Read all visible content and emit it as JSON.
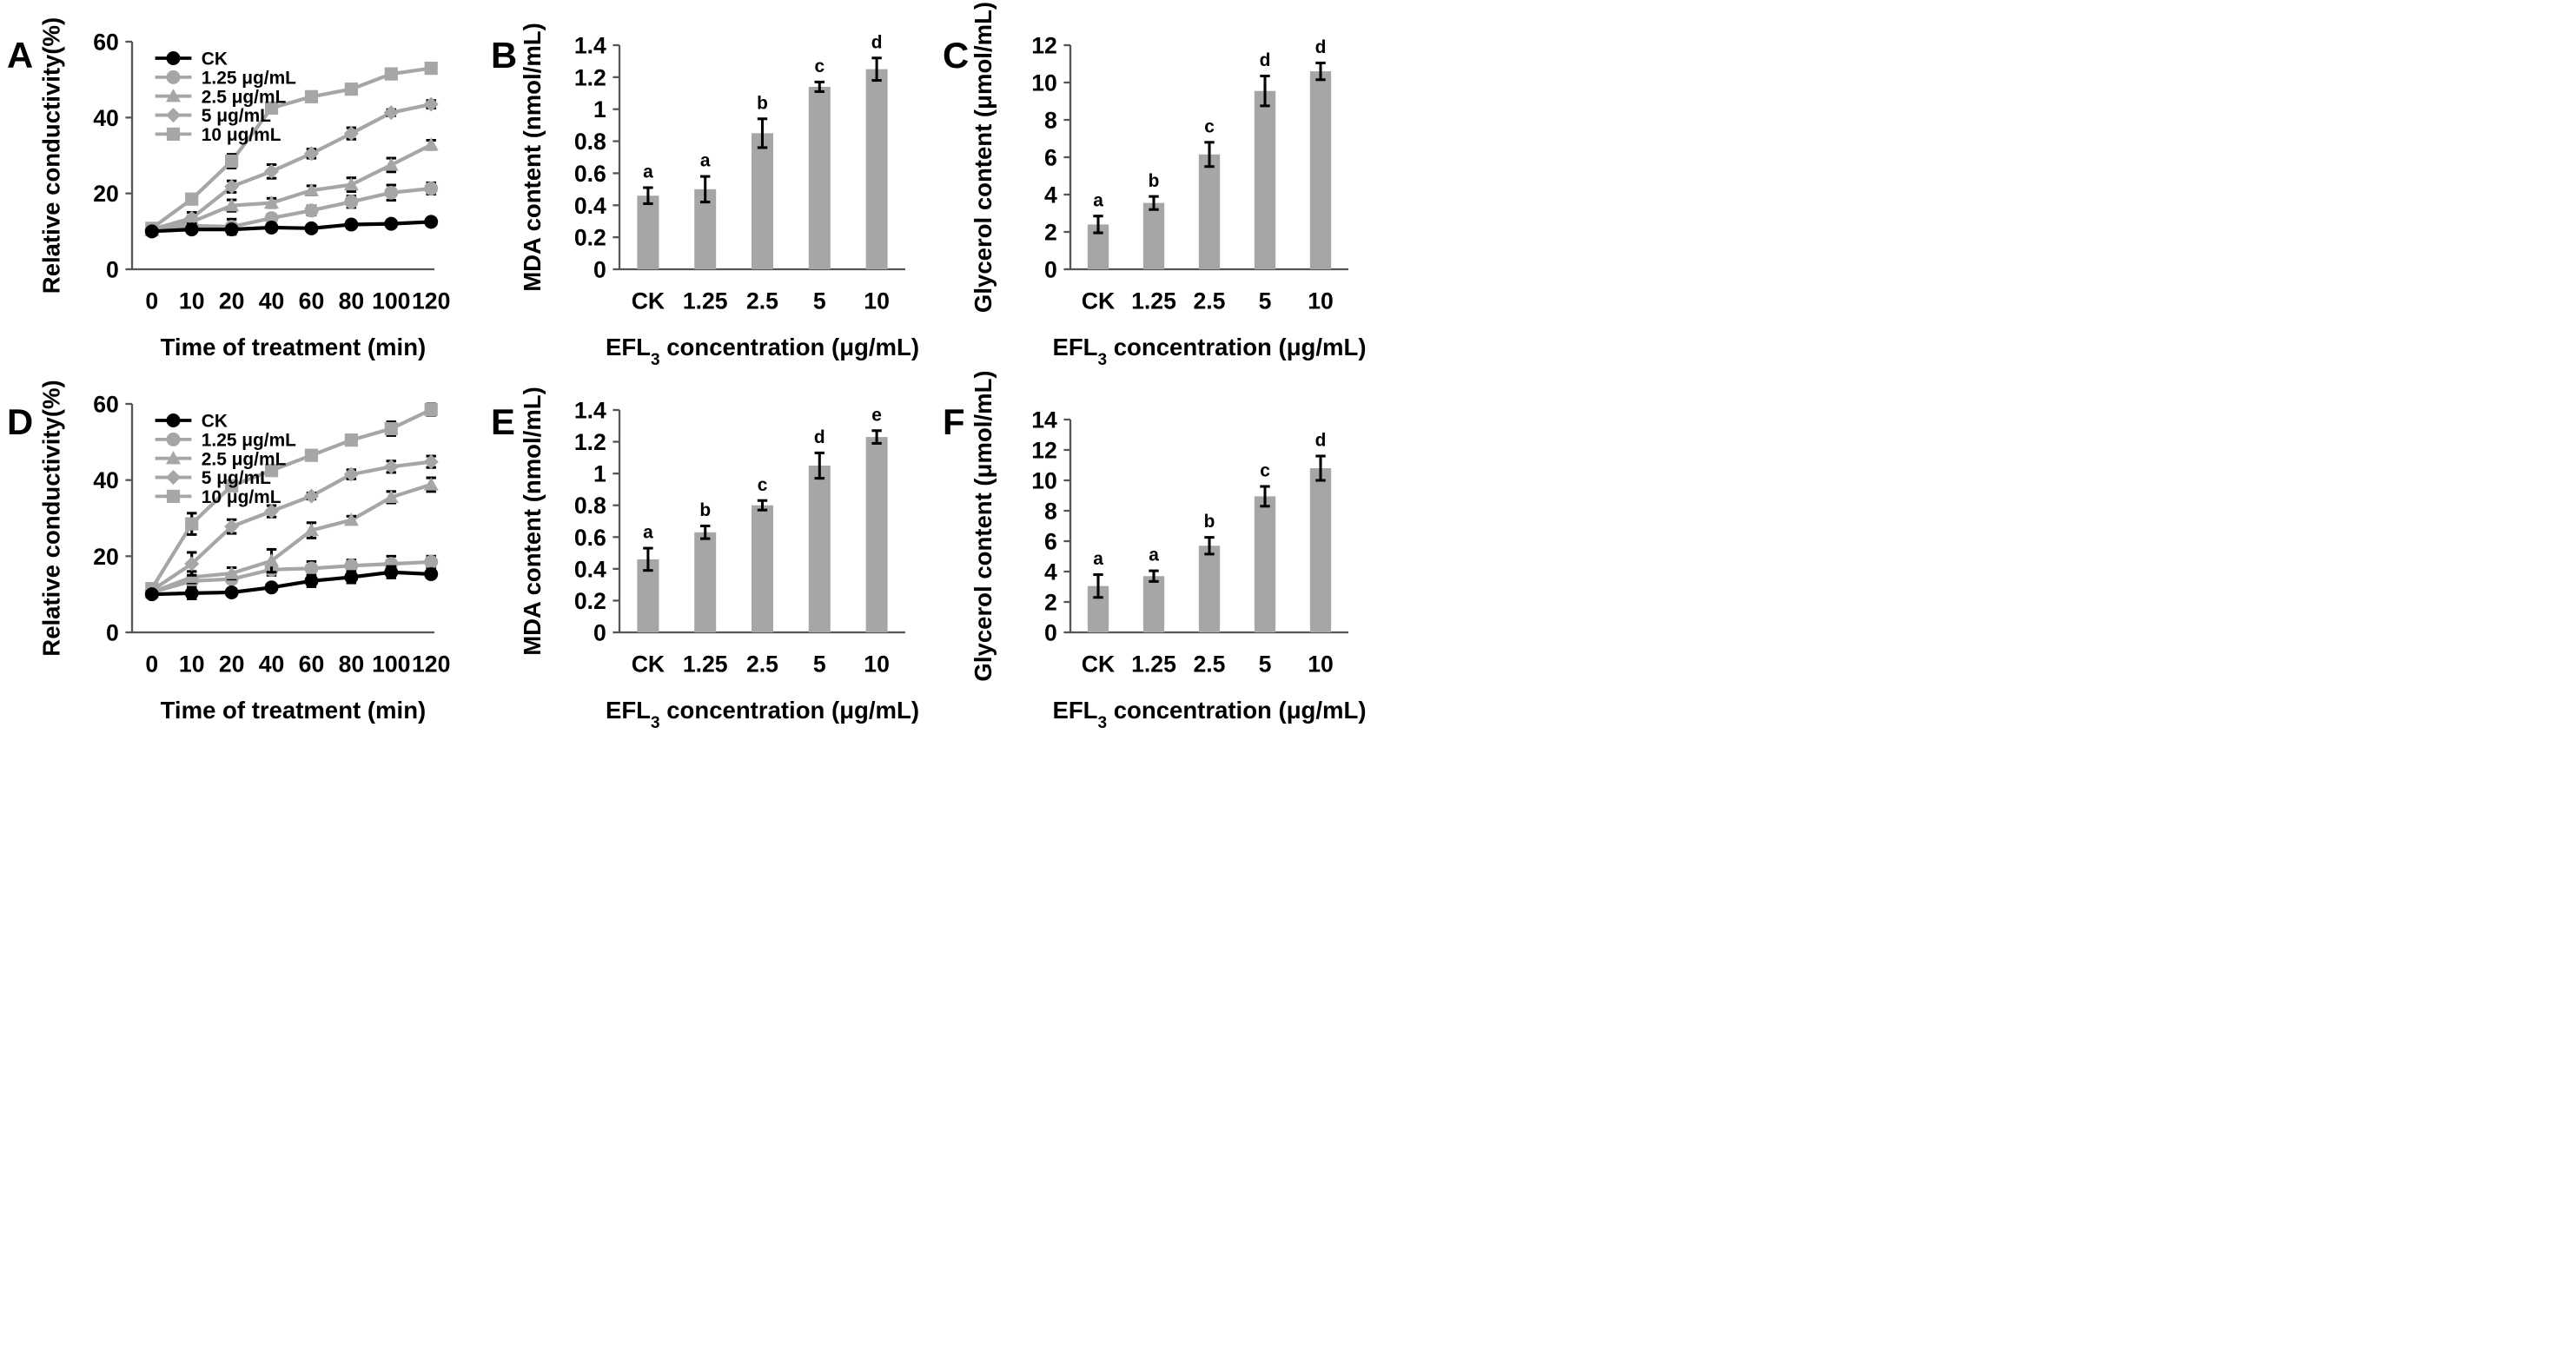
{
  "colors": {
    "ck": "#000000",
    "treated": "#a6a6a6",
    "bar": "#a6a6a6",
    "axis": "#555555"
  },
  "chart_data": [
    {
      "id": "A",
      "type": "line",
      "panel_letter": "A",
      "xlabel": "Time of treatment (min)",
      "ylabel": "Relative conductivity(%)",
      "x": [
        "0",
        "10",
        "20",
        "40",
        "60",
        "80",
        "100",
        "120"
      ],
      "ylim": [
        0,
        60
      ],
      "yticks": [
        "0",
        "20",
        "40",
        "60"
      ],
      "legend_position": "top-left",
      "series": [
        {
          "name": "CK",
          "marker": "circle",
          "values": [
            10,
            10.5,
            10.5,
            11,
            10.8,
            11.8,
            12,
            12.5
          ],
          "errors": [
            0.8,
            0.8,
            1,
            1,
            0.8,
            1,
            0.6,
            0.6
          ]
        },
        {
          "name": "1.25 μg/mL",
          "marker": "circle",
          "values": [
            10,
            11.5,
            11.2,
            13.5,
            15.5,
            17.8,
            20.2,
            21.3
          ],
          "errors": [
            0.8,
            1.5,
            2,
            1,
            1.2,
            1.5,
            2,
            1.5
          ]
        },
        {
          "name": "2.5 μg/mL",
          "marker": "triangle",
          "values": [
            10.2,
            12.5,
            16.8,
            17.5,
            20.8,
            22.3,
            27.5,
            32.8
          ],
          "errors": [
            0.8,
            1.5,
            1.5,
            1.2,
            1.2,
            1.8,
            1.8,
            1.2
          ]
        },
        {
          "name": "5 μg/mL",
          "marker": "diamond",
          "values": [
            10.5,
            13.5,
            21.8,
            25.8,
            30.5,
            35.8,
            41.3,
            43.5
          ],
          "errors": [
            0.8,
            1.5,
            1.5,
            1.8,
            1.2,
            1.5,
            0.8,
            1
          ]
        },
        {
          "name": "10 μg/mL",
          "marker": "square",
          "values": [
            10.8,
            18.5,
            28.5,
            42.5,
            45.5,
            47.5,
            51.5,
            53
          ],
          "errors": [
            0.8,
            1,
            1.8,
            1.2,
            0.5,
            1.2,
            0.6,
            0.5
          ]
        }
      ]
    },
    {
      "id": "B",
      "type": "bar",
      "panel_letter": "B",
      "xlabel_main": "EFL",
      "xlabel_sub": "3",
      "xlabel_rest": " concentration (μg/mL)",
      "ylabel": "MDA content (nmol/mL)",
      "categories": [
        "CK",
        "1.25",
        "2.5",
        "5",
        "10"
      ],
      "values": [
        0.46,
        0.5,
        0.85,
        1.14,
        1.25
      ],
      "errors": [
        0.05,
        0.08,
        0.09,
        0.03,
        0.07
      ],
      "letters": [
        "a",
        "a",
        "b",
        "c",
        "d"
      ],
      "ylim": [
        0,
        1.4
      ],
      "yticks": [
        "0",
        "0.2",
        "0.4",
        "0.6",
        "0.8",
        "1",
        "1.2",
        "1.4"
      ]
    },
    {
      "id": "C",
      "type": "bar",
      "panel_letter": "C",
      "xlabel_main": "EFL",
      "xlabel_sub": "3",
      "xlabel_rest": " concentration (μg/mL)",
      "ylabel": "Glycerol content (μmol/mL)",
      "categories": [
        "CK",
        "1.25",
        "2.5",
        "5",
        "10"
      ],
      "values": [
        2.4,
        3.55,
        6.15,
        9.55,
        10.6
      ],
      "errors": [
        0.45,
        0.35,
        0.65,
        0.8,
        0.45
      ],
      "letters": [
        "a",
        "b",
        "c",
        "d",
        "d"
      ],
      "ylim": [
        0,
        12
      ],
      "yticks": [
        "0",
        "2",
        "4",
        "6",
        "8",
        "10",
        "12"
      ]
    },
    {
      "id": "D",
      "type": "line",
      "panel_letter": "D",
      "xlabel": "Time of treatment (min)",
      "ylabel": "Relative conductivity(%)",
      "x": [
        "0",
        "10",
        "20",
        "40",
        "60",
        "80",
        "100",
        "120"
      ],
      "ylim": [
        0,
        60
      ],
      "yticks": [
        "0",
        "20",
        "40",
        "60"
      ],
      "legend_position": "top-left",
      "series": [
        {
          "name": "CK",
          "marker": "circle",
          "values": [
            10,
            10.3,
            10.5,
            11.8,
            13.5,
            14.5,
            15.8,
            15.3
          ],
          "errors": [
            0.8,
            1.5,
            1,
            1,
            1.5,
            1.5,
            1.5,
            1
          ]
        },
        {
          "name": "1.25 μg/mL",
          "marker": "circle",
          "values": [
            10.5,
            13.5,
            14,
            16.5,
            16.8,
            17.5,
            18,
            18.5
          ],
          "errors": [
            0.8,
            1,
            1,
            1.5,
            1.8,
            1.5,
            2,
            1.5
          ]
        },
        {
          "name": "2.5 μg/mL",
          "marker": "triangle",
          "values": [
            10.5,
            14.5,
            15.5,
            18.8,
            26.8,
            29.5,
            35.5,
            38.8
          ],
          "errors": [
            0.8,
            1.5,
            1.5,
            3,
            2,
            1,
            1.5,
            1.8
          ]
        },
        {
          "name": "5 μg/mL",
          "marker": "diamond",
          "values": [
            11,
            18,
            27.8,
            31.8,
            35.8,
            41.5,
            43.5,
            44.8
          ],
          "errors": [
            0.8,
            3,
            1.8,
            1.5,
            0.8,
            1.2,
            1.5,
            1.5
          ]
        },
        {
          "name": "10 μg/mL",
          "marker": "square",
          "values": [
            11.5,
            28.5,
            38.5,
            42.5,
            46.5,
            50.5,
            53.5,
            58.5
          ],
          "errors": [
            0.8,
            2.8,
            1,
            0.5,
            1.2,
            0.8,
            1.8,
            1.5
          ]
        }
      ]
    },
    {
      "id": "E",
      "type": "bar",
      "panel_letter": "E",
      "xlabel_main": "EFL",
      "xlabel_sub": "3",
      "xlabel_rest": " concentration (μg/mL)",
      "ylabel": "MDA content (nmol/mL)",
      "categories": [
        "CK",
        "1.25",
        "2.5",
        "5",
        "10"
      ],
      "values": [
        0.46,
        0.63,
        0.8,
        1.05,
        1.23
      ],
      "errors": [
        0.07,
        0.04,
        0.03,
        0.08,
        0.04
      ],
      "letters": [
        "a",
        "b",
        "c",
        "d",
        "e"
      ],
      "ylim": [
        0,
        1.4
      ],
      "yticks": [
        "0",
        "0.2",
        "0.4",
        "0.6",
        "0.8",
        "1",
        "1.2",
        "1.4"
      ]
    },
    {
      "id": "F",
      "type": "bar",
      "panel_letter": "F",
      "xlabel_main": "EFL",
      "xlabel_sub": "3",
      "xlabel_rest": " concentration (μg/mL)",
      "ylabel": "Glycerol content (μmol/mL)",
      "categories": [
        "CK",
        "1.25",
        "2.5",
        "5",
        "10"
      ],
      "values": [
        3.05,
        3.7,
        5.7,
        8.95,
        10.8
      ],
      "errors": [
        0.75,
        0.35,
        0.55,
        0.65,
        0.8
      ],
      "letters": [
        "a",
        "a",
        "b",
        "c",
        "d"
      ],
      "ylim": [
        0,
        14
      ],
      "yticks": [
        "0",
        "2",
        "4",
        "6",
        "8",
        "10",
        "12",
        "14"
      ]
    }
  ]
}
